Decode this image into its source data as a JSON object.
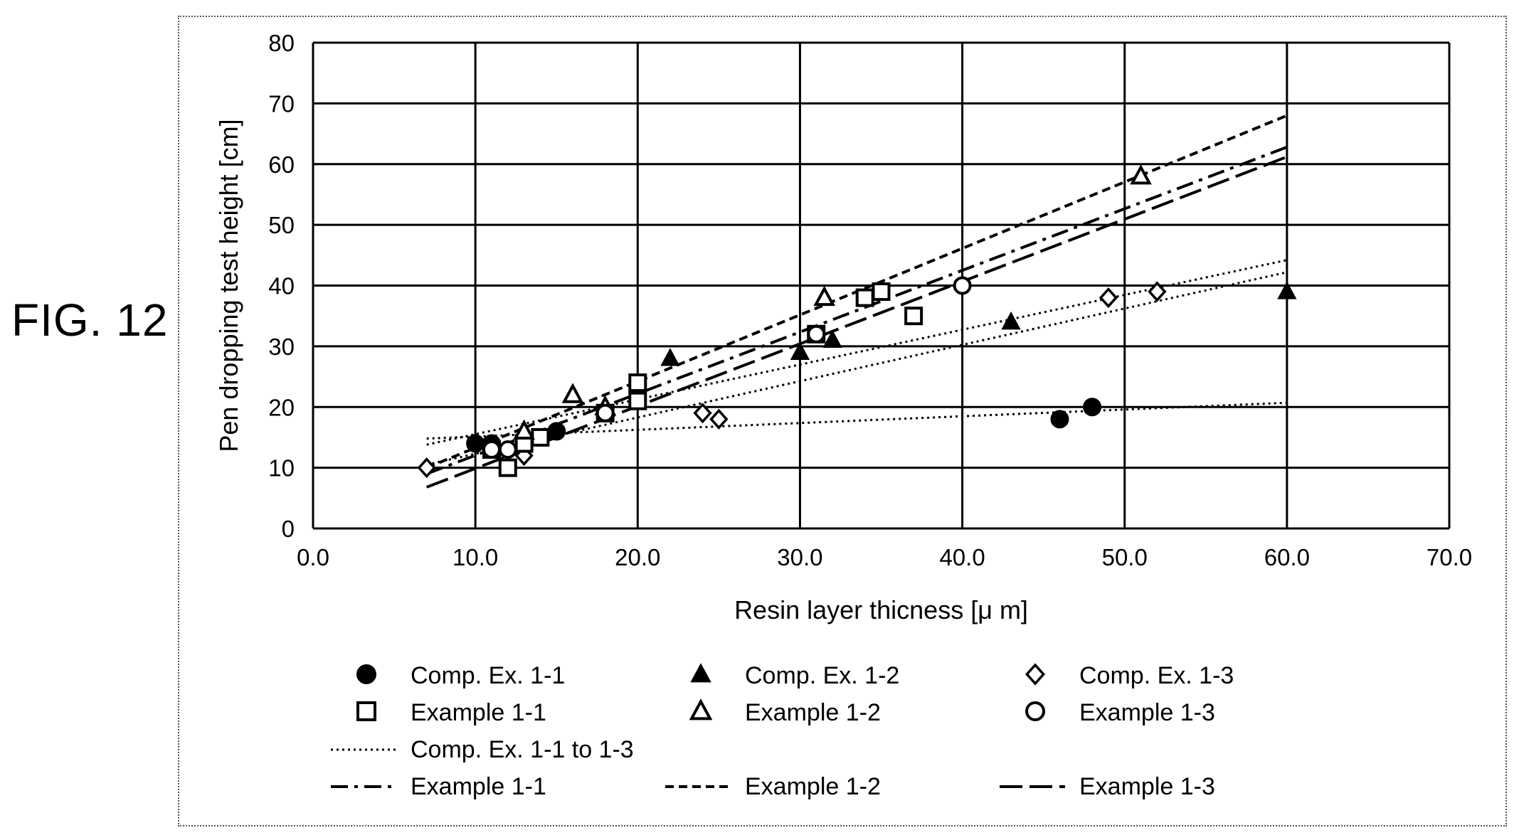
{
  "figure_label": "FIG. 12",
  "chart_data": {
    "type": "scatter",
    "xlabel": "Resin layer thicness [μ m]",
    "ylabel": "Pen dropping test height [cm]",
    "xlim": [
      0,
      70
    ],
    "ylim": [
      0,
      80
    ],
    "x_ticks": [
      "0.0",
      "10.0",
      "20.0",
      "30.0",
      "40.0",
      "50.0",
      "60.0",
      "70.0"
    ],
    "y_ticks": [
      "0",
      "10",
      "20",
      "30",
      "40",
      "50",
      "60",
      "70",
      "80"
    ],
    "grid": true,
    "legend_position": "bottom",
    "series": [
      {
        "name": "Comp. Ex. 1-1",
        "marker": "filled-circle",
        "points": [
          [
            10,
            14
          ],
          [
            11,
            14
          ],
          [
            15,
            16
          ],
          [
            46,
            18
          ],
          [
            48,
            20
          ]
        ]
      },
      {
        "name": "Comp. Ex. 1-2",
        "marker": "filled-triangle",
        "points": [
          [
            18,
            20
          ],
          [
            22,
            28
          ],
          [
            30,
            29
          ],
          [
            32,
            31
          ],
          [
            43,
            34
          ],
          [
            60,
            39
          ]
        ]
      },
      {
        "name": "Comp. Ex. 1-3",
        "marker": "open-diamond",
        "points": [
          [
            7,
            10
          ],
          [
            13,
            12
          ],
          [
            24,
            19
          ],
          [
            25,
            18
          ],
          [
            49,
            38
          ],
          [
            52,
            39
          ]
        ]
      },
      {
        "name": "Example 1-1",
        "marker": "open-square",
        "points": [
          [
            11,
            13
          ],
          [
            12,
            10
          ],
          [
            13,
            14
          ],
          [
            14,
            15
          ],
          [
            18,
            19
          ],
          [
            20,
            21
          ],
          [
            20,
            24
          ],
          [
            31,
            32
          ],
          [
            34,
            38
          ],
          [
            35,
            39
          ],
          [
            37,
            35
          ]
        ]
      },
      {
        "name": "Example 1-2",
        "marker": "open-triangle",
        "points": [
          [
            13,
            16
          ],
          [
            16,
            22
          ],
          [
            18,
            20
          ],
          [
            31.5,
            38
          ],
          [
            51,
            58
          ]
        ]
      },
      {
        "name": "Example 1-3",
        "marker": "open-circle",
        "points": [
          [
            11,
            13
          ],
          [
            12,
            13
          ],
          [
            18,
            19
          ],
          [
            31,
            32
          ],
          [
            40,
            40
          ]
        ]
      }
    ],
    "trendlines": [
      {
        "name": "Comp. Ex. 1-1 to 1-3",
        "style": "dotted",
        "x": [
          7,
          60
        ],
        "y": [
          14.8,
          20.7
        ]
      },
      {
        "name": "Comp. Ex. 1-1 to 1-3",
        "style": "dotted",
        "x": [
          7,
          60
        ],
        "y": [
          13.8,
          44.2
        ]
      },
      {
        "name": "Comp. Ex. 1-1 to 1-3",
        "style": "dotted",
        "x": [
          7,
          60
        ],
        "y": [
          10.5,
          42.2
        ]
      },
      {
        "name": "Example 1-1",
        "style": "dash-dot",
        "x": [
          7,
          60
        ],
        "y": [
          9.0,
          62.8
        ]
      },
      {
        "name": "Example 1-2",
        "style": "short-dash",
        "x": [
          7,
          60
        ],
        "y": [
          10.0,
          68.0
        ]
      },
      {
        "name": "Example 1-3",
        "style": "long-dash",
        "x": [
          7,
          60
        ],
        "y": [
          6.8,
          61.2
        ]
      }
    ],
    "legend": [
      {
        "label": "Comp. Ex. 1-1",
        "icon": "filled-circle"
      },
      {
        "label": "Comp. Ex. 1-2",
        "icon": "filled-triangle"
      },
      {
        "label": "Comp. Ex. 1-3",
        "icon": "open-diamond"
      },
      {
        "label": "Example 1-1",
        "icon": "open-square"
      },
      {
        "label": "Example 1-2",
        "icon": "open-triangle"
      },
      {
        "label": "Example 1-3",
        "icon": "open-circle"
      },
      {
        "label": "Comp. Ex. 1-1 to 1-3",
        "icon": "dotted-line"
      },
      {
        "label": "Example 1-1",
        "icon": "dash-dot-line"
      },
      {
        "label": "Example 1-2",
        "icon": "short-dash-line"
      },
      {
        "label": "Example 1-3",
        "icon": "long-dash-line"
      }
    ]
  }
}
